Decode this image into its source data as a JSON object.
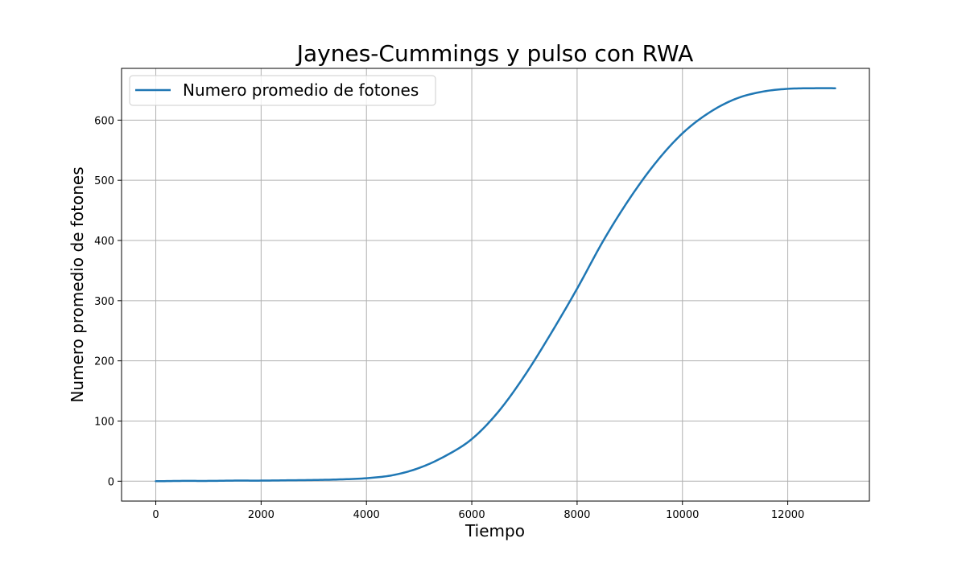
{
  "chart_data": {
    "type": "line",
    "title": "Jaynes-Cummings y pulso con RWA",
    "xlabel": "Tiempo",
    "ylabel": "Numero promedio de fotones",
    "xlim": [
      -650,
      13550
    ],
    "ylim": [
      -33,
      686
    ],
    "xticks": [
      0,
      2000,
      4000,
      6000,
      8000,
      10000,
      12000
    ],
    "yticks": [
      0,
      100,
      200,
      300,
      400,
      500,
      600
    ],
    "grid": true,
    "legend_position": "top-left",
    "series": [
      {
        "name": "Numero promedio de fotones",
        "color": "#1f77b4",
        "x": [
          0,
          500,
          1000,
          1500,
          2000,
          2500,
          3000,
          3500,
          4000,
          4500,
          5000,
          5500,
          6000,
          6500,
          7000,
          7500,
          8000,
          8500,
          9000,
          9500,
          10000,
          10500,
          11000,
          11500,
          12000,
          12500,
          12900
        ],
        "y": [
          0,
          0.5,
          0.5,
          1,
          1,
          1.5,
          2,
          3,
          5,
          10,
          22,
          42,
          70,
          115,
          175,
          245,
          320,
          400,
          470,
          530,
          578,
          612,
          635,
          647,
          652,
          653,
          653
        ]
      }
    ]
  }
}
